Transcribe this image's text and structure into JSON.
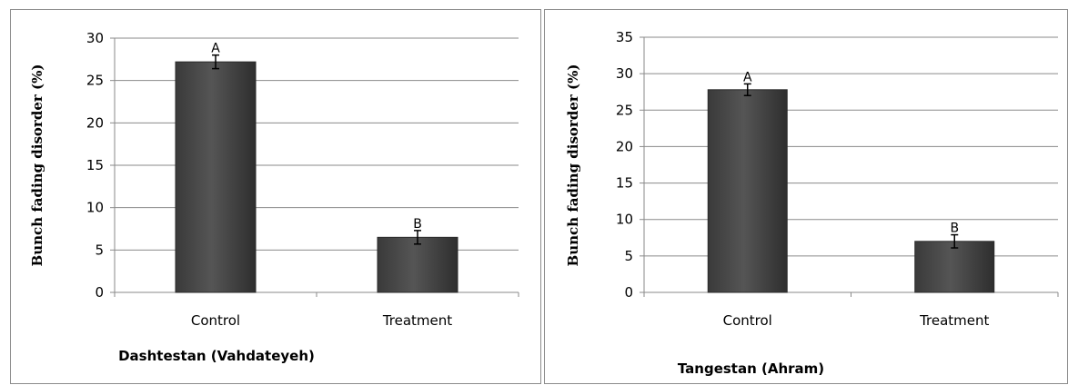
{
  "chart_data": [
    {
      "type": "bar",
      "categories": [
        "Control",
        "Treatment"
      ],
      "values": [
        27.2,
        6.5
      ],
      "errors": [
        0.8,
        0.8
      ],
      "significance": [
        "A",
        "B"
      ],
      "xlabel": "Dashtestan (Vahdateyeh)",
      "ylabel": "Bunch fading disorder (%)",
      "ylim": [
        0,
        30
      ],
      "yticks": [
        0,
        5,
        10,
        15,
        20,
        25,
        30
      ],
      "grid": true,
      "bar_color": "#555555"
    },
    {
      "type": "bar",
      "categories": [
        "Control",
        "Treatment"
      ],
      "values": [
        27.8,
        7.0
      ],
      "errors": [
        0.8,
        0.9
      ],
      "significance": [
        "A",
        "B"
      ],
      "xlabel": "Tangestan (Ahram)",
      "ylabel": "Bunch fading disorder (%)",
      "ylim": [
        0,
        35
      ],
      "yticks": [
        0,
        5,
        10,
        15,
        20,
        25,
        30,
        35
      ],
      "grid": true,
      "bar_color": "#555555"
    }
  ]
}
